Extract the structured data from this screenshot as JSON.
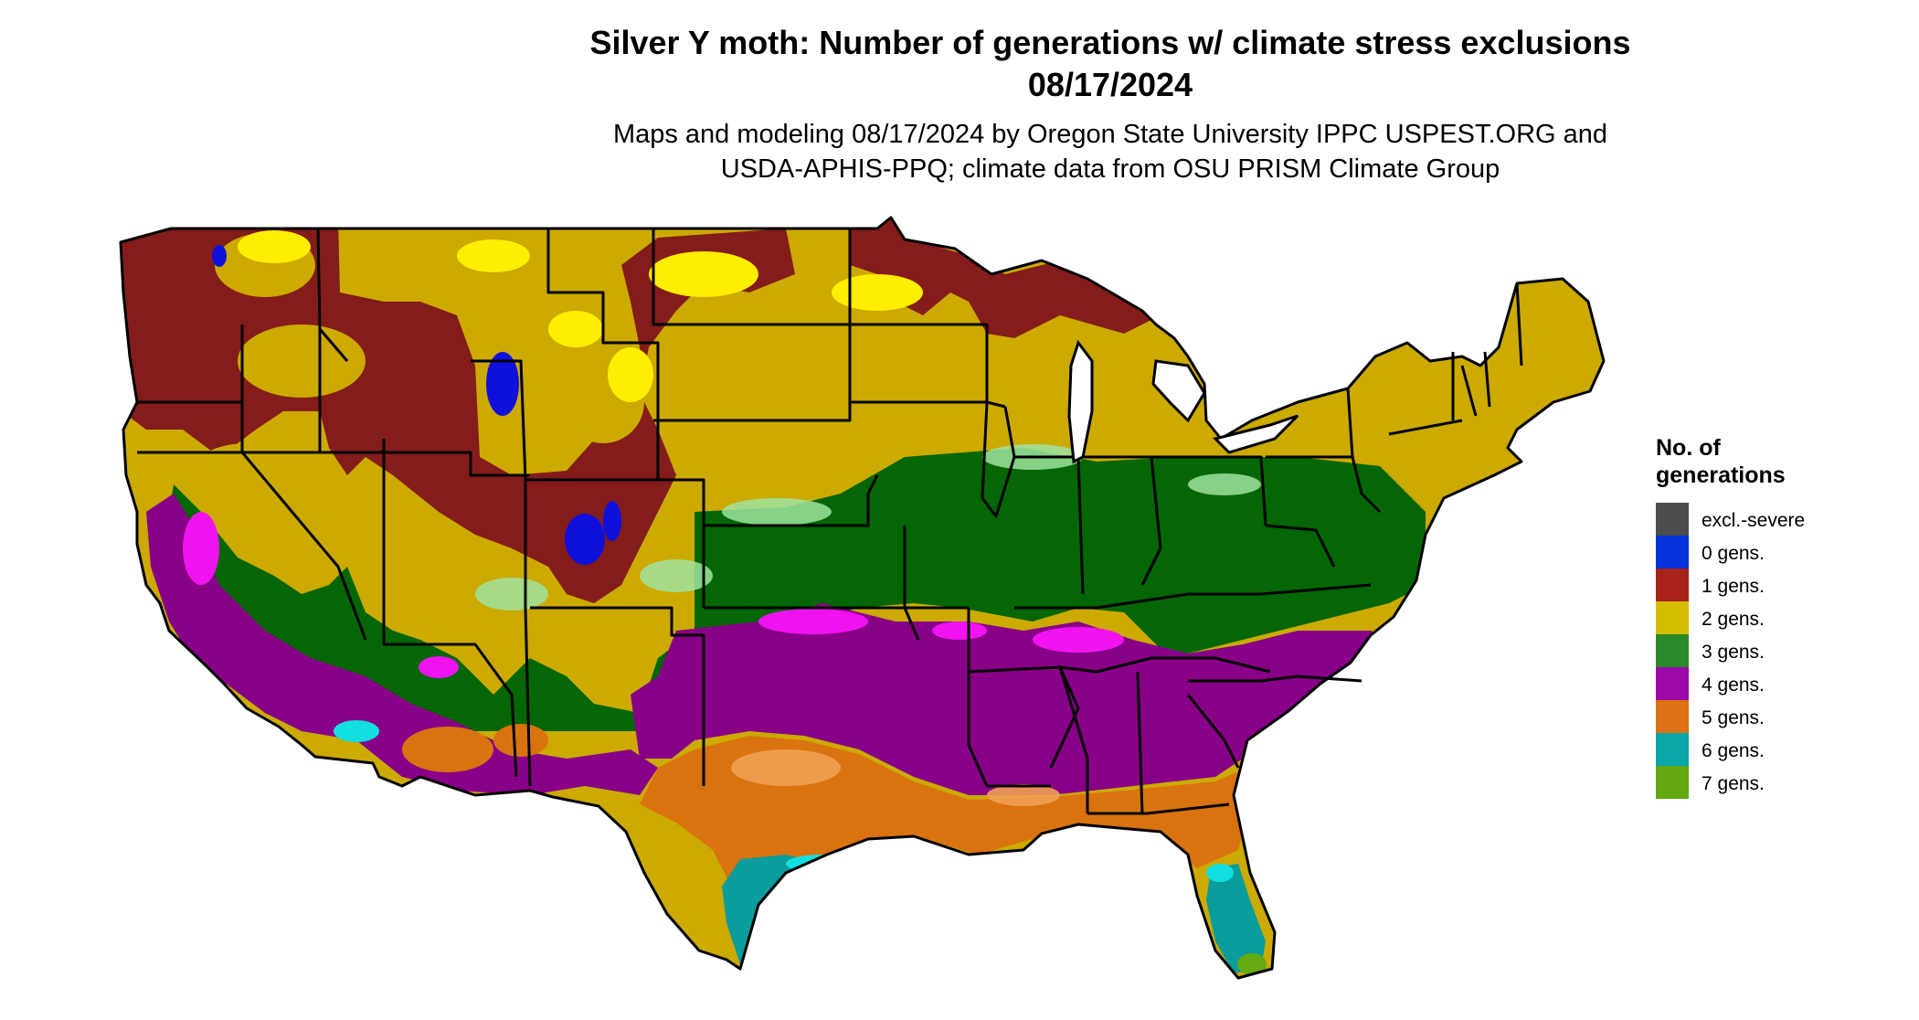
{
  "title": {
    "line1": "Silver Y moth: Number of generations w/ climate stress exclusions",
    "line2": "08/17/2024"
  },
  "subtitle": {
    "line1": "Maps and modeling 08/17/2024 by Oregon State University IPPC USPEST.ORG and",
    "line2": "USDA-APHIS-PPQ; climate data from OSU PRISM Climate Group"
  },
  "legend": {
    "title_line1": "No. of",
    "title_line2": "generations",
    "items": [
      {
        "label": "excl.-severe",
        "color": "#4d4d4d"
      },
      {
        "label": "0 gens.",
        "color": "#0533d9"
      },
      {
        "label": "1 gens.",
        "color": "#a6221a"
      },
      {
        "label": "2 gens.",
        "color": "#d4bc00"
      },
      {
        "label": "3 gens.",
        "color": "#2a8a2a"
      },
      {
        "label": "4 gens.",
        "color": "#9a08a8"
      },
      {
        "label": "5 gens.",
        "color": "#db7213"
      },
      {
        "label": "6 gens.",
        "color": "#0aa8a8"
      },
      {
        "label": "7 gens.",
        "color": "#62a80f"
      }
    ]
  },
  "map_colors": {
    "one_gen": "#841c1c",
    "two_gen": "#ccaa00",
    "three_gen": "#046604",
    "four_gen": "#880088",
    "five_gen": "#d9730f",
    "six_gen": "#0b9c9c",
    "seven_gen": "#66aa11",
    "light_green": "#9fe39f",
    "magenta": "#f013f0",
    "light_orange": "#f0a055",
    "cyan": "#12e0e0",
    "yellow": "#ffee00",
    "blue": "#1010dd"
  }
}
